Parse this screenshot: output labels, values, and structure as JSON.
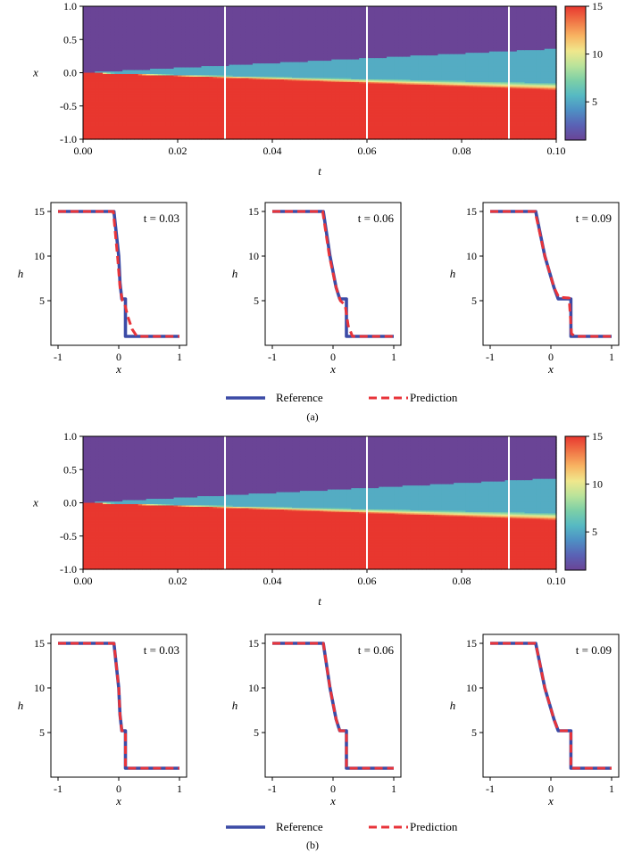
{
  "panel_labels": [
    "(a)",
    "(b)"
  ],
  "legend": {
    "reference": "Reference",
    "prediction": "Prediction"
  },
  "colors": {
    "reference": "#3c4ba6",
    "prediction": "#e8343a",
    "slice_line": "#ffffff",
    "colormap": [
      "#6a4496",
      "#5a62b5",
      "#4e8fc4",
      "#56b9c3",
      "#7ccfa7",
      "#b9e39a",
      "#f0e78c",
      "#f8b462",
      "#f07546",
      "#e8372f"
    ]
  },
  "chart_data": [
    {
      "type": "heatmap",
      "panel": "(a)",
      "xlabel": "t",
      "ylabel": "x",
      "xlim": [
        0.0,
        0.1
      ],
      "ylim": [
        -1.0,
        1.0
      ],
      "xticks": [
        "0.00",
        "0.02",
        "0.04",
        "0.06",
        "0.08",
        "0.10"
      ],
      "yticks": [
        "1.0",
        "0.5",
        "0.0",
        "-0.5",
        "-1.0"
      ],
      "colorbar": {
        "range": [
          1,
          15
        ],
        "ticks": [
          "15",
          "10",
          "5"
        ]
      },
      "slice_times": [
        0.03,
        0.06,
        0.09
      ],
      "field": {
        "h_left": 15,
        "h_mid": 5.2,
        "h_right": 1,
        "front_speed": 3.6,
        "rarefaction_speed": -2.6,
        "mid_band_speed": -1.6
      }
    },
    {
      "type": "line",
      "panel": "(a)",
      "annotation": "t = 0.03",
      "xlabel": "x",
      "ylabel": "h",
      "xlim": [
        -1,
        1
      ],
      "ylim": [
        0,
        16
      ],
      "xticks": [
        "-1",
        "0",
        "1"
      ],
      "yticks": [
        "15",
        "10",
        "5"
      ],
      "series": [
        {
          "name": "Reference",
          "x": [
            -1,
            -0.08,
            0,
            0.02,
            0.05,
            0.11,
            0.11,
            0.14,
            1
          ],
          "y": [
            15,
            15,
            10,
            7,
            5.2,
            5.2,
            1,
            1,
            1
          ]
        },
        {
          "name": "Prediction",
          "x": [
            -1,
            -0.09,
            -0.02,
            0.02,
            0.06,
            0.1,
            0.15,
            0.22,
            0.3,
            1
          ],
          "y": [
            15,
            15,
            10,
            6.5,
            5,
            4.6,
            3.2,
            1.8,
            1,
            1
          ]
        }
      ]
    },
    {
      "type": "line",
      "panel": "(a)",
      "annotation": "t = 0.06",
      "xlabel": "x",
      "ylabel": "h",
      "xlim": [
        -1,
        1
      ],
      "ylim": [
        0,
        16
      ],
      "xticks": [
        "-1",
        "0",
        "1"
      ],
      "yticks": [
        "15",
        "10",
        "5"
      ],
      "series": [
        {
          "name": "Reference",
          "x": [
            -1,
            -0.16,
            -0.05,
            0.05,
            0.11,
            0.22,
            0.22,
            0.27,
            1
          ],
          "y": [
            15,
            15,
            10,
            6.5,
            5.2,
            5.2,
            1,
            1,
            1
          ]
        },
        {
          "name": "Prediction",
          "x": [
            -1,
            -0.17,
            -0.06,
            0.05,
            0.12,
            0.2,
            0.25,
            0.32,
            1
          ],
          "y": [
            15,
            15,
            10,
            6.5,
            5,
            4.5,
            2.2,
            1,
            1
          ]
        }
      ]
    },
    {
      "type": "line",
      "panel": "(a)",
      "annotation": "t = 0.09",
      "xlabel": "x",
      "ylabel": "h",
      "xlim": [
        -1,
        1
      ],
      "ylim": [
        0,
        16
      ],
      "xticks": [
        "-1",
        "0",
        "1"
      ],
      "yticks": [
        "15",
        "10",
        "5"
      ],
      "series": [
        {
          "name": "Reference",
          "x": [
            -1,
            -0.25,
            -0.1,
            0.05,
            0.12,
            0.33,
            0.33,
            0.4,
            1
          ],
          "y": [
            15,
            15,
            10,
            6.5,
            5.2,
            5.2,
            1,
            1,
            1
          ]
        },
        {
          "name": "Prediction",
          "x": [
            -1,
            -0.26,
            -0.1,
            0.05,
            0.13,
            0.3,
            0.34,
            0.4,
            1
          ],
          "y": [
            15,
            15,
            10,
            6.5,
            5.4,
            5.3,
            1.3,
            1,
            1
          ]
        }
      ]
    },
    {
      "type": "heatmap",
      "panel": "(b)",
      "xlabel": "t",
      "ylabel": "x",
      "xlim": [
        0.0,
        0.1
      ],
      "ylim": [
        -1.0,
        1.0
      ],
      "xticks": [
        "0.00",
        "0.02",
        "0.04",
        "0.06",
        "0.08",
        "0.10"
      ],
      "yticks": [
        "1.0",
        "0.5",
        "0.0",
        "-0.5",
        "-1.0"
      ],
      "colorbar": {
        "range": [
          1,
          15
        ],
        "ticks": [
          "15",
          "10",
          "5"
        ]
      },
      "slice_times": [
        0.03,
        0.06,
        0.09
      ],
      "field": {
        "h_left": 15,
        "h_mid": 5.2,
        "h_right": 1,
        "front_speed": 3.7,
        "rarefaction_speed": -2.6,
        "mid_band_speed": -1.6
      }
    },
    {
      "type": "line",
      "panel": "(b)",
      "annotation": "t = 0.03",
      "xlabel": "x",
      "ylabel": "h",
      "xlim": [
        -1,
        1
      ],
      "ylim": [
        0,
        16
      ],
      "xticks": [
        "-1",
        "0",
        "1"
      ],
      "yticks": [
        "15",
        "10",
        "5"
      ],
      "series": [
        {
          "name": "Reference",
          "x": [
            -1,
            -0.08,
            0,
            0.02,
            0.05,
            0.11,
            0.11,
            0.14,
            1
          ],
          "y": [
            15,
            15,
            10,
            7,
            5.2,
            5.2,
            1,
            1,
            1
          ]
        },
        {
          "name": "Prediction",
          "x": [
            -1,
            -0.08,
            0,
            0.02,
            0.05,
            0.11,
            0.11,
            0.14,
            1
          ],
          "y": [
            15,
            15,
            10,
            7,
            5.2,
            5.2,
            1,
            1,
            1
          ]
        }
      ]
    },
    {
      "type": "line",
      "panel": "(b)",
      "annotation": "t = 0.06",
      "xlabel": "x",
      "ylabel": "h",
      "xlim": [
        -1,
        1
      ],
      "ylim": [
        0,
        16
      ],
      "xticks": [
        "-1",
        "0",
        "1"
      ],
      "yticks": [
        "15",
        "10",
        "5"
      ],
      "series": [
        {
          "name": "Reference",
          "x": [
            -1,
            -0.16,
            -0.05,
            0.05,
            0.11,
            0.22,
            0.22,
            0.27,
            1
          ],
          "y": [
            15,
            15,
            10,
            6.5,
            5.2,
            5.2,
            1,
            1,
            1
          ]
        },
        {
          "name": "Prediction",
          "x": [
            -1,
            -0.16,
            -0.05,
            0.05,
            0.11,
            0.22,
            0.22,
            0.27,
            1
          ],
          "y": [
            15,
            15,
            10,
            6.5,
            5.2,
            5.2,
            1,
            1,
            1
          ]
        }
      ]
    },
    {
      "type": "line",
      "panel": "(b)",
      "annotation": "t = 0.09",
      "xlabel": "x",
      "ylabel": "h",
      "xlim": [
        -1,
        1
      ],
      "ylim": [
        0,
        16
      ],
      "xticks": [
        "-1",
        "0",
        "1"
      ],
      "yticks": [
        "15",
        "10",
        "5"
      ],
      "series": [
        {
          "name": "Reference",
          "x": [
            -1,
            -0.25,
            -0.1,
            0.05,
            0.12,
            0.33,
            0.33,
            0.4,
            1
          ],
          "y": [
            15,
            15,
            10,
            6.5,
            5.2,
            5.2,
            1,
            1,
            1
          ]
        },
        {
          "name": "Prediction",
          "x": [
            -1,
            -0.25,
            -0.1,
            0.05,
            0.12,
            0.33,
            0.33,
            0.4,
            1
          ],
          "y": [
            15,
            15,
            10,
            6.5,
            5.2,
            5.2,
            1,
            1,
            1
          ]
        }
      ]
    }
  ]
}
